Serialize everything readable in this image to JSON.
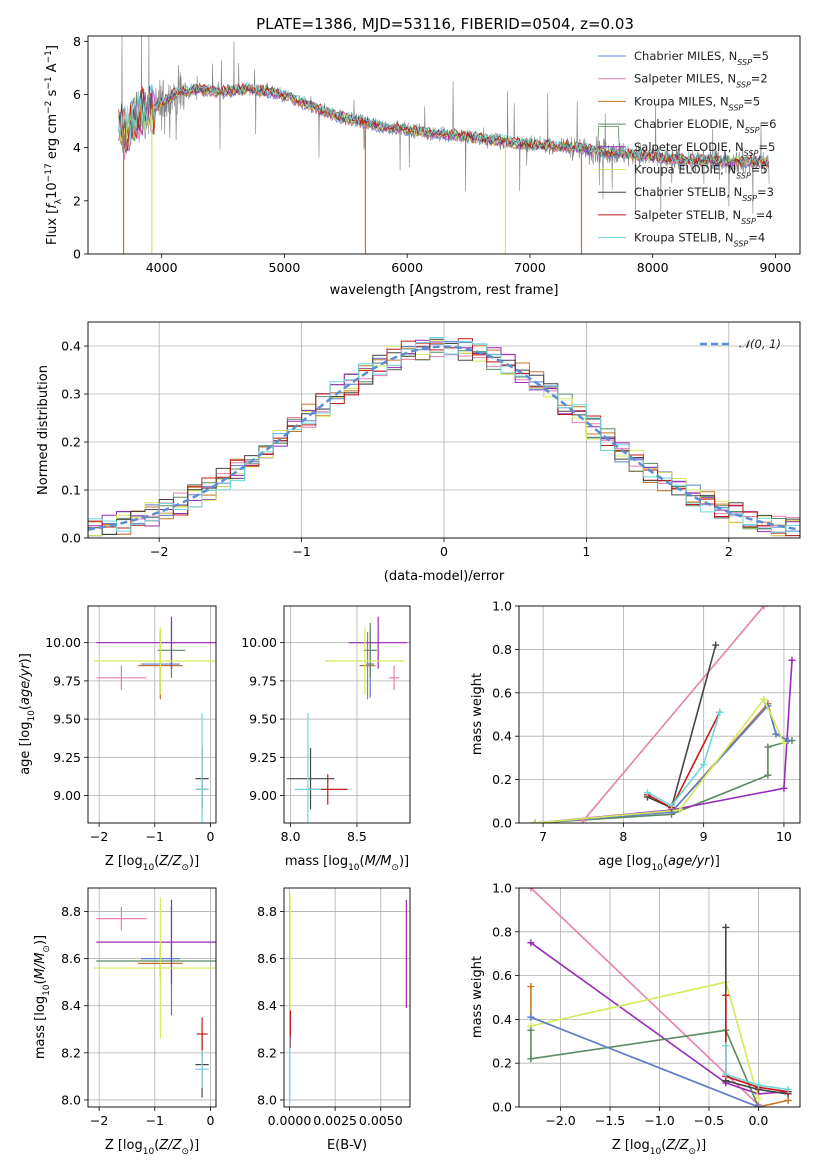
{
  "colors": {
    "Chabrier MILES": "#5a7fd6",
    "Salpeter MILES": "#e87fb0",
    "Kroupa MILES": "#c8742a",
    "Chabrier ELODIE": "#5b8a64",
    "Salpeter ELODIE": "#9a2bb8",
    "Kroupa ELODIE": "#d4ea5a",
    "Chabrier STELIB": "#454545",
    "Salpeter STELIB": "#c41a1a",
    "Kroupa STELIB": "#6fd6dc",
    "gaussian": "#5a8fd6",
    "data": "#808080"
  },
  "chart_data": [
    {
      "type": "line",
      "title": "PLATE=1386, MJD=53116, FIBERID=0504, z=0.03",
      "xlabel": "wavelength [Angstrom, rest frame]",
      "ylabel": "Flux [f_λ10^-17 erg cm^-2 s^-1 A^-1]",
      "xlim": [
        3400,
        9200
      ],
      "ylim": [
        0,
        8.2
      ],
      "xticks": [
        4000,
        5000,
        6000,
        7000,
        8000,
        9000
      ],
      "yticks": [
        0,
        2,
        4,
        6,
        8
      ],
      "legend_position": "top-right",
      "legend": [
        "Chabrier MILES, N_SSP=5",
        "Salpeter MILES, N_SSP=2",
        "Kroupa MILES, N_SSP=5",
        "Chabrier ELODIE, N_SSP=6",
        "Salpeter ELODIE, N_SSP=5",
        "Kroupa ELODIE, N_SSP=5",
        "Chabrier STELIB, N_SSP=3",
        "Salpeter STELIB, N_SSP=4",
        "Kroupa STELIB, N_SSP=4"
      ],
      "continuum_points": [
        [
          3700,
          4.6
        ],
        [
          3800,
          5.2
        ],
        [
          3950,
          5.5
        ],
        [
          4100,
          6.0
        ],
        [
          4300,
          6.2
        ],
        [
          4500,
          6.1
        ],
        [
          4700,
          6.2
        ],
        [
          4900,
          6.1
        ],
        [
          5100,
          5.8
        ],
        [
          5300,
          5.4
        ],
        [
          5500,
          5.1
        ],
        [
          5800,
          4.8
        ],
        [
          6200,
          4.55
        ],
        [
          6600,
          4.35
        ],
        [
          7000,
          4.1
        ],
        [
          7300,
          4.05
        ],
        [
          7500,
          3.9
        ],
        [
          7800,
          3.75
        ],
        [
          8200,
          3.55
        ],
        [
          8600,
          3.5
        ],
        [
          8900,
          3.45
        ]
      ],
      "grid": false
    },
    {
      "type": "bar",
      "xlabel": "(data-model)/error",
      "ylabel": "Normed distribution",
      "xlim": [
        -2.5,
        2.5
      ],
      "ylim": [
        0,
        0.45
      ],
      "xticks": [
        -2,
        -1,
        0,
        1,
        2
      ],
      "yticks": [
        0.0,
        0.1,
        0.2,
        0.3,
        0.4
      ],
      "legend": [
        "𝒩(0, 1)"
      ],
      "legend_position": "top-right",
      "bin_width": 0.1,
      "grid": true
    },
    {
      "type": "scatter",
      "xlabel": "Z [log10(Z/Z_⊙)]",
      "ylabel": "age [log10(age/yr)]",
      "xlim": [
        -2.2,
        0.1
      ],
      "ylim": [
        8.82,
        10.24
      ],
      "xticks": [
        -2,
        -1,
        0
      ],
      "yticks": [
        9.0,
        9.25,
        9.5,
        9.75,
        10.0
      ],
      "grid": true,
      "points": [
        {
          "s": "Chabrier MILES",
          "x": -0.9,
          "xerr": 0.35,
          "y": 9.86,
          "yerr": 0.22
        },
        {
          "s": "Salpeter MILES",
          "x": -1.6,
          "xerr": 0.45,
          "y": 9.77,
          "yerr": 0.08
        },
        {
          "s": "Kroupa MILES",
          "x": -0.9,
          "xerr": 0.4,
          "y": 9.85,
          "yerr": 0.22
        },
        {
          "s": "Chabrier ELODIE",
          "x": -0.7,
          "xerr": 0.25,
          "y": 9.95,
          "yerr": 0.18
        },
        {
          "s": "Salpeter ELODIE",
          "x": -0.7,
          "xerr": 1.35,
          "y": 10.0,
          "yerr": 0.17
        },
        {
          "s": "Kroupa ELODIE",
          "x": -0.9,
          "xerr": 1.2,
          "y": 9.88,
          "yerr": 0.22
        },
        {
          "s": "Chabrier STELIB",
          "x": -0.15,
          "xerr": 0.12,
          "y": 9.11,
          "yerr": 0.2
        },
        {
          "s": "Salpeter STELIB",
          "x": -0.15,
          "xerr": 0.1,
          "y": 9.04,
          "yerr": 0.1
        },
        {
          "s": "Kroupa STELIB",
          "x": -0.15,
          "xerr": 0.12,
          "y": 9.04,
          "yerr": 0.5
        }
      ]
    },
    {
      "type": "scatter",
      "xlabel": "mass [log10(M/M_⊙)]",
      "ylabel": "",
      "xlim": [
        7.95,
        8.9
      ],
      "ylim": [
        8.82,
        10.24
      ],
      "xticks": [
        8.0,
        8.5
      ],
      "yticks": [
        9.0,
        9.25,
        9.5,
        9.75,
        10.0
      ],
      "grid": true,
      "points": [
        {
          "s": "Chabrier MILES",
          "x": 8.6,
          "xerr": 0.03,
          "y": 9.86,
          "yerr": 0.22
        },
        {
          "s": "Salpeter MILES",
          "x": 8.78,
          "xerr": 0.04,
          "y": 9.77,
          "yerr": 0.08
        },
        {
          "s": "Kroupa MILES",
          "x": 8.58,
          "xerr": 0.06,
          "y": 9.85,
          "yerr": 0.22
        },
        {
          "s": "Chabrier ELODIE",
          "x": 8.6,
          "xerr": 0.05,
          "y": 9.95,
          "yerr": 0.18
        },
        {
          "s": "Salpeter ELODIE",
          "x": 8.66,
          "xerr": 0.22,
          "y": 10.0,
          "yerr": 0.17
        },
        {
          "s": "Kroupa ELODIE",
          "x": 8.56,
          "xerr": 0.3,
          "y": 9.88,
          "yerr": 0.22
        },
        {
          "s": "Chabrier STELIB",
          "x": 8.15,
          "xerr": 0.18,
          "y": 9.11,
          "yerr": 0.2
        },
        {
          "s": "Salpeter STELIB",
          "x": 8.28,
          "xerr": 0.15,
          "y": 9.04,
          "yerr": 0.1
        },
        {
          "s": "Kroupa STELIB",
          "x": 8.13,
          "xerr": 0.1,
          "y": 9.04,
          "yerr": 0.5
        }
      ]
    },
    {
      "type": "line",
      "xlabel": "age [log10(age/yr)]",
      "ylabel": "mass weight",
      "xlim": [
        6.7,
        10.2
      ],
      "ylim": [
        0,
        1.0
      ],
      "xticks": [
        7,
        8,
        9,
        10
      ],
      "yticks": [
        0.0,
        0.2,
        0.4,
        0.6,
        0.8,
        1.0
      ],
      "grid": true,
      "series": [
        {
          "s": "Chabrier ELODIE",
          "points": [
            [
              6.9,
              0.0
            ],
            [
              8.6,
              0.04
            ],
            [
              9.8,
              0.22
            ],
            [
              9.8,
              0.35
            ],
            [
              10.1,
              0.38
            ]
          ]
        },
        {
          "s": "Salpeter ELODIE",
          "points": [
            [
              6.9,
              0.0
            ],
            [
              8.6,
              0.06
            ],
            [
              10.0,
              0.16
            ],
            [
              10.1,
              0.75
            ]
          ]
        },
        {
          "s": "Salpeter MILES",
          "points": [
            [
              7.5,
              0.01
            ],
            [
              9.75,
              1.0
            ]
          ]
        },
        {
          "s": "Kroupa MILES",
          "points": [
            [
              6.9,
              0.0
            ],
            [
              8.6,
              0.05
            ],
            [
              9.8,
              0.55
            ],
            [
              9.9,
              0.41
            ],
            [
              10.05,
              0.38
            ]
          ]
        },
        {
          "s": "Chabrier MILES",
          "points": [
            [
              6.9,
              0.0
            ],
            [
              8.6,
              0.05
            ],
            [
              9.8,
              0.54
            ],
            [
              9.9,
              0.41
            ],
            [
              10.05,
              0.38
            ]
          ]
        },
        {
          "s": "Kroupa ELODIE",
          "points": [
            [
              6.9,
              0.0
            ],
            [
              8.7,
              0.06
            ],
            [
              9.75,
              0.57
            ],
            [
              10.0,
              0.37
            ]
          ]
        },
        {
          "s": "Chabrier STELIB",
          "points": [
            [
              8.3,
              0.12
            ],
            [
              8.6,
              0.07
            ],
            [
              9.15,
              0.82
            ]
          ]
        },
        {
          "s": "Salpeter STELIB",
          "points": [
            [
              8.3,
              0.13
            ],
            [
              8.6,
              0.07
            ],
            [
              9.2,
              0.51
            ]
          ]
        },
        {
          "s": "Kroupa STELIB",
          "points": [
            [
              8.3,
              0.14
            ],
            [
              8.6,
              0.08
            ],
            [
              9.0,
              0.27
            ],
            [
              9.2,
              0.51
            ]
          ]
        }
      ]
    },
    {
      "type": "scatter",
      "xlabel": "Z [log10(Z/Z_⊙)]",
      "ylabel": "mass [log10(M/M_⊙)]",
      "xlim": [
        -2.2,
        0.1
      ],
      "ylim": [
        7.97,
        8.9
      ],
      "xticks": [
        -2,
        -1,
        0
      ],
      "yticks": [
        8.0,
        8.2,
        8.4,
        8.6,
        8.8
      ],
      "grid": true,
      "points": [
        {
          "s": "Chabrier MILES",
          "x": -0.9,
          "xerr": 0.35,
          "y": 8.6,
          "yerr": 0.05
        },
        {
          "s": "Salpeter MILES",
          "x": -1.6,
          "xerr": 0.45,
          "y": 8.77,
          "yerr": 0.05
        },
        {
          "s": "Kroupa MILES",
          "x": -0.9,
          "xerr": 0.4,
          "y": 8.58,
          "yerr": 0.06
        },
        {
          "s": "Chabrier ELODIE",
          "x": -0.7,
          "xerr": 1.35,
          "y": 8.59,
          "yerr": 0.23
        },
        {
          "s": "Salpeter ELODIE",
          "x": -0.7,
          "xerr": 1.35,
          "y": 8.67,
          "yerr": 0.18
        },
        {
          "s": "Kroupa ELODIE",
          "x": -0.9,
          "xerr": 1.2,
          "y": 8.56,
          "yerr": 0.3
        },
        {
          "s": "Chabrier STELIB",
          "x": -0.15,
          "xerr": 0.12,
          "y": 8.15,
          "yerr": 0.14
        },
        {
          "s": "Salpeter STELIB",
          "x": -0.15,
          "xerr": 0.1,
          "y": 8.28,
          "yerr": 0.07
        },
        {
          "s": "Kroupa STELIB",
          "x": -0.15,
          "xerr": 0.12,
          "y": 8.13,
          "yerr": 0.08
        }
      ]
    },
    {
      "type": "scatter",
      "xlabel": "E(B-V)",
      "ylabel": "",
      "xlim": [
        -0.0003,
        0.0066
      ],
      "ylim": [
        7.97,
        8.9
      ],
      "xticks": [
        0.0,
        0.0025,
        0.005
      ],
      "xticklabels": [
        "0.0000",
        "0.0025",
        "0.0050"
      ],
      "yticks": [
        8.0,
        8.2,
        8.4,
        8.6,
        8.8
      ],
      "grid": true,
      "points": [
        {
          "s": "Kroupa ELODIE",
          "x": 3e-05,
          "y": 8.56,
          "yerr": 0.32
        },
        {
          "s": "Salpeter STELIB",
          "x": 5e-05,
          "y": 8.3,
          "yerr": 0.08
        },
        {
          "s": "Kroupa STELIB",
          "x": 2e-05,
          "y": 8.13,
          "yerr": 0.14
        },
        {
          "s": "Salpeter ELODIE",
          "x": 0.0064,
          "y": 8.62,
          "yerr": 0.23
        }
      ]
    },
    {
      "type": "line",
      "xlabel": "Z [log10(Z/Z_⊙)]",
      "ylabel": "mass weight",
      "xlim": [
        -2.42,
        0.42
      ],
      "ylim": [
        0,
        1.0
      ],
      "xticks": [
        -2.0,
        -1.5,
        -1.0,
        -0.5,
        0.0
      ],
      "yticks": [
        0.0,
        0.2,
        0.4,
        0.6,
        0.8,
        1.0
      ],
      "grid": true,
      "series": [
        {
          "s": "Salpeter MILES",
          "points": [
            [
              -2.3,
              1.0
            ],
            [
              0.0,
              0.01
            ]
          ]
        },
        {
          "s": "Salpeter ELODIE",
          "points": [
            [
              -2.3,
              0.75
            ],
            [
              -0.33,
              0.11
            ],
            [
              0.0,
              0.06
            ],
            [
              0.3,
              0.07
            ]
          ]
        },
        {
          "s": "Kroupa ELODIE",
          "points": [
            [
              -2.3,
              0.37
            ],
            [
              -0.33,
              0.57
            ],
            [
              0.0,
              0.04
            ]
          ]
        },
        {
          "s": "Chabrier ELODIE",
          "points": [
            [
              -2.3,
              0.35
            ],
            [
              -2.3,
              0.22
            ],
            [
              -0.33,
              0.35
            ],
            [
              0.0,
              0.0
            ]
          ]
        },
        {
          "s": "Kroupa MILES",
          "points": [
            [
              -2.3,
              0.55
            ],
            [
              -2.3,
              0.41
            ],
            [
              0.0,
              0.0
            ],
            [
              0.3,
              0.03
            ]
          ]
        },
        {
          "s": "Chabrier MILES",
          "points": [
            [
              -2.3,
              0.41
            ],
            [
              0.0,
              0.0
            ]
          ]
        },
        {
          "s": "Chabrier STELIB",
          "points": [
            [
              -0.33,
              0.82
            ],
            [
              -0.33,
              0.12
            ],
            [
              0.0,
              0.08
            ],
            [
              0.3,
              0.06
            ]
          ]
        },
        {
          "s": "Salpeter STELIB",
          "points": [
            [
              -0.33,
              0.51
            ],
            [
              -0.33,
              0.14
            ],
            [
              0.0,
              0.09
            ],
            [
              0.3,
              0.07
            ]
          ]
        },
        {
          "s": "Kroupa STELIB",
          "points": [
            [
              -0.33,
              0.28
            ],
            [
              -0.33,
              0.15
            ],
            [
              0.0,
              0.1
            ],
            [
              0.3,
              0.08
            ]
          ]
        }
      ]
    }
  ]
}
